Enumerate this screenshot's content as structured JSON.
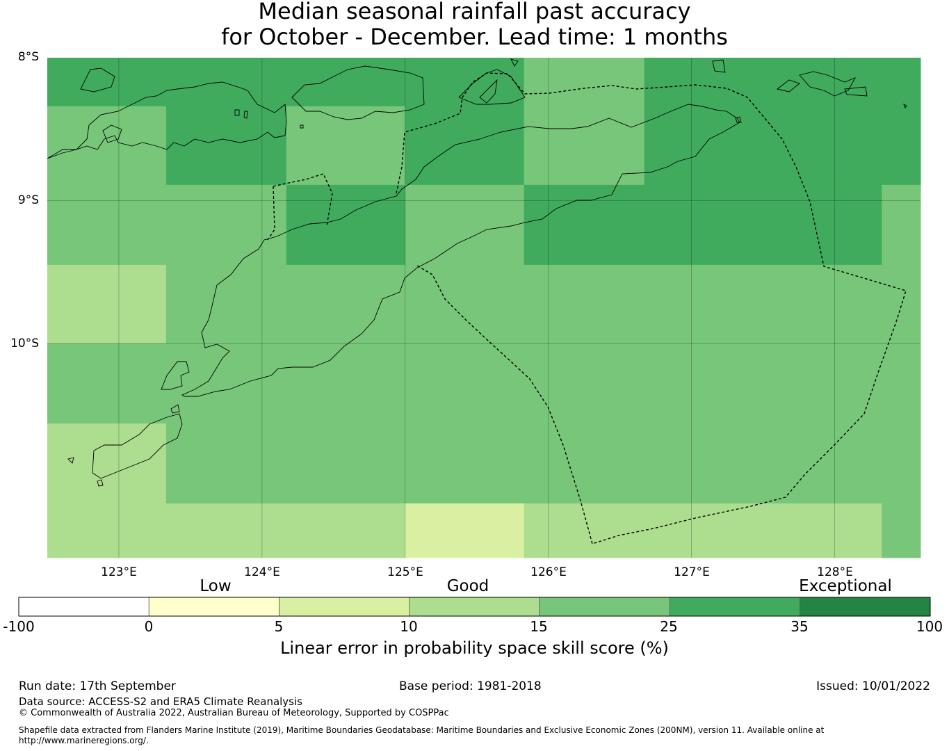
{
  "title": {
    "line1": "Median seasonal rainfall past accuracy",
    "line2": "for October - December. Lead time: 1 months"
  },
  "map": {
    "lat_labels": [
      "8°S",
      "9°S",
      "10°S"
    ],
    "lon_labels": [
      "123°E",
      "124°E",
      "125°E",
      "126°E",
      "127°E",
      "128°E"
    ],
    "lat_range": [
      -11.5,
      -8.0
    ],
    "lon_range": [
      122.5,
      128.6
    ],
    "grid_lats": [
      -9.0,
      -10.0
    ],
    "grid_lons": [
      123,
      124,
      125,
      126,
      127,
      128
    ],
    "cell_lon_edges": [
      122.5,
      123.33,
      124.17,
      125.0,
      125.83,
      126.67,
      127.5,
      128.33,
      128.6
    ],
    "cell_lat_edges": [
      -8.0,
      -8.34,
      -8.89,
      -9.45,
      -10.0,
      -10.56,
      -11.12,
      -11.5
    ],
    "cell_classes": [
      [
        4,
        4,
        4,
        4,
        3,
        4,
        4,
        4
      ],
      [
        3,
        4,
        2,
        4,
        2,
        4,
        4,
        4
      ],
      [
        3,
        3,
        4,
        3,
        4,
        4,
        4,
        3
      ],
      [
        1,
        3,
        3,
        3,
        3,
        3,
        3,
        3
      ],
      [
        3,
        3,
        3,
        3,
        3,
        3,
        3,
        3
      ],
      [
        1,
        3,
        3,
        3,
        3,
        3,
        3,
        3
      ],
      [
        1,
        1,
        1,
        0,
        1,
        1,
        1,
        3
      ]
    ],
    "cell_colors": [
      "#d9f0a3",
      "#addd8e",
      "#78c679",
      "#78c679",
      "#41ab5d"
    ]
  },
  "colorbar": {
    "category_labels": [
      "Low",
      "Good",
      "Exceptional"
    ],
    "tick_labels": [
      "-100",
      "0",
      "5",
      "10",
      "15",
      "25",
      "35",
      "100"
    ],
    "colors": [
      "#ffffff",
      "#ffffcc",
      "#d9f0a3",
      "#addd8e",
      "#78c679",
      "#41ab5d",
      "#238443"
    ],
    "label": "Linear error in probability space skill score (%)"
  },
  "footer": {
    "run_date": "Run date: 17th September",
    "base_period": "Base period: 1981-2018",
    "issued": "Issued: 10/01/2022",
    "data_source": "Data source: ACCESS-S2 and ERA5 Climate Reanalysis",
    "copyright": "© Commonwealth of Australia 2022, Australian Bureau of Meteorology, Supported by COSPPac",
    "shapefile_line1": "Shapefile data extracted from Flanders Marine Institute (2019), Maritime Boundaries Geodatabase: Maritime Boundaries and Exclusive Economic Zones (200NM), version 11. Available online at",
    "shapefile_line2": "http://www.marineregions.org/."
  }
}
